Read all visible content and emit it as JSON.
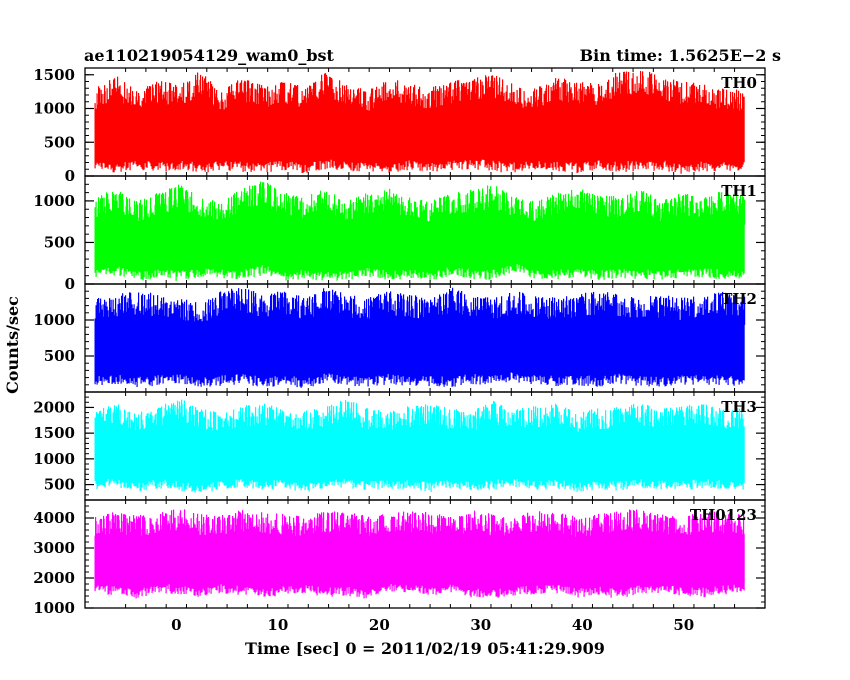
{
  "header": {
    "left": "ae110219054129_wam0_bst",
    "right": "Bin time: 1.5625E−2 s"
  },
  "chart_data": {
    "type": "line",
    "title": "ae110219054129_wam0_bst",
    "subtitle": "Bin time: 1.5625E−2 s",
    "xlabel": "Time [sec] 0 = 2011/02/19 05:41:29.909",
    "ylabel": "Counts/sec",
    "xlim": [
      -9,
      58
    ],
    "x_data_range": [
      -8,
      56
    ],
    "x_ticks": [
      0,
      10,
      20,
      30,
      40,
      50
    ],
    "x_tick_labels": [
      "0",
      "10",
      "20",
      "30",
      "40",
      "50"
    ],
    "grid": false,
    "panels": [
      {
        "label": "TH0",
        "color": "#ff0000",
        "ylim": [
          0,
          1600
        ],
        "y_ticks": [
          0,
          500,
          1000,
          1500
        ],
        "y_tick_labels": [
          "0",
          "500",
          "1000",
          "1500"
        ],
        "min_values": [
          70,
          50,
          100,
          50,
          80,
          30,
          90,
          60,
          50,
          80,
          40,
          100,
          70,
          60,
          30,
          90,
          50,
          80,
          100,
          60,
          50,
          80,
          70,
          40,
          90,
          60,
          50,
          80,
          30,
          70,
          60,
          90
        ],
        "max_values": [
          1250,
          1450,
          1200,
          1350,
          1300,
          1500,
          1200,
          1400,
          1280,
          1350,
          1250,
          1500,
          1300,
          1200,
          1400,
          1300,
          1250,
          1350,
          1400,
          1450,
          1300,
          1250,
          1400,
          1350,
          1300,
          1500,
          1550,
          1400,
          1350,
          1300,
          1250,
          1200
        ]
      },
      {
        "label": "TH1",
        "color": "#00ff00",
        "ylim": [
          0,
          1300
        ],
        "y_ticks": [
          0,
          500,
          1000
        ],
        "y_tick_labels": [
          "0",
          "500",
          "1000"
        ],
        "min_values": [
          60,
          100,
          40,
          50,
          30,
          80,
          70,
          50,
          100,
          40,
          60,
          20,
          50,
          80,
          40,
          60,
          30,
          100,
          50,
          40,
          150,
          60,
          50,
          80,
          40,
          70,
          60,
          50,
          60,
          80,
          50,
          40
        ],
        "max_values": [
          1000,
          1100,
          950,
          1050,
          1150,
          1000,
          950,
          1100,
          1200,
          1050,
          1000,
          1100,
          950,
          1050,
          1100,
          1000,
          950,
          1050,
          1100,
          1150,
          1000,
          950,
          1050,
          1100,
          1050,
          1000,
          1100,
          950,
          1050,
          1000,
          1100,
          1000
        ]
      },
      {
        "label": "TH2",
        "color": "#0000ff",
        "ylim": [
          0,
          1500
        ],
        "y_ticks": [
          500,
          1000
        ],
        "y_tick_labels": [
          "500",
          "1000"
        ],
        "min_values": [
          80,
          100,
          60,
          90,
          120,
          70,
          80,
          100,
          60,
          90,
          50,
          110,
          80,
          70,
          100,
          90,
          80,
          60,
          110,
          90,
          140,
          100,
          80,
          90,
          70,
          110,
          80,
          60,
          100,
          90,
          80,
          70
        ],
        "max_values": [
          1250,
          1300,
          1350,
          1300,
          1250,
          1200,
          1350,
          1400,
          1300,
          1350,
          1250,
          1400,
          1300,
          1250,
          1350,
          1300,
          1250,
          1400,
          1300,
          1250,
          1350,
          1300,
          1250,
          1300,
          1350,
          1300,
          1250,
          1300,
          1250,
          1300,
          1350,
          1300
        ]
      },
      {
        "label": "TH3",
        "color": "#00ffff",
        "ylim": [
          200,
          2300
        ],
        "y_ticks": [
          500,
          1000,
          1500,
          2000
        ],
        "y_tick_labels": [
          "500",
          "1000",
          "1500",
          "2000"
        ],
        "min_values": [
          400,
          450,
          350,
          420,
          380,
          300,
          400,
          450,
          380,
          420,
          350,
          400,
          430,
          380,
          420,
          400,
          350,
          420,
          380,
          400,
          450,
          380,
          420,
          350,
          400,
          380,
          420,
          400,
          380,
          420,
          400,
          380
        ],
        "max_values": [
          1900,
          2000,
          1850,
          1950,
          2100,
          1900,
          1850,
          1950,
          2000,
          1900,
          1850,
          1950,
          2100,
          1900,
          1850,
          1950,
          2000,
          1900,
          1850,
          2050,
          1900,
          1950,
          2000,
          1850,
          1900,
          1950,
          2000,
          1900,
          1950,
          2050,
          1900,
          1950
        ]
      },
      {
        "label": "TH0123",
        "color": "#ff00ff",
        "ylim": [
          1000,
          4600
        ],
        "y_ticks": [
          1000,
          2000,
          3000,
          4000
        ],
        "y_tick_labels": [
          "1000",
          "2000",
          "3000",
          "4000"
        ],
        "min_values": [
          1500,
          1400,
          1300,
          1500,
          1450,
          1350,
          1500,
          1400,
          1300,
          1450,
          1500,
          1350,
          1400,
          1300,
          1500,
          1450,
          1400,
          1500,
          1350,
          1300,
          1400,
          1450,
          1500,
          1350,
          1400,
          1300,
          1450,
          1500,
          1400,
          1350,
          1450,
          1500
        ],
        "max_values": [
          3900,
          4100,
          3950,
          4050,
          4200,
          4000,
          3950,
          4150,
          4050,
          4000,
          3900,
          4100,
          4050,
          3950,
          4000,
          4100,
          4050,
          3900,
          4150,
          4000,
          3950,
          4100,
          4050,
          3900,
          4000,
          4100,
          4200,
          4000,
          3950,
          4100,
          4050,
          4000
        ]
      }
    ]
  }
}
